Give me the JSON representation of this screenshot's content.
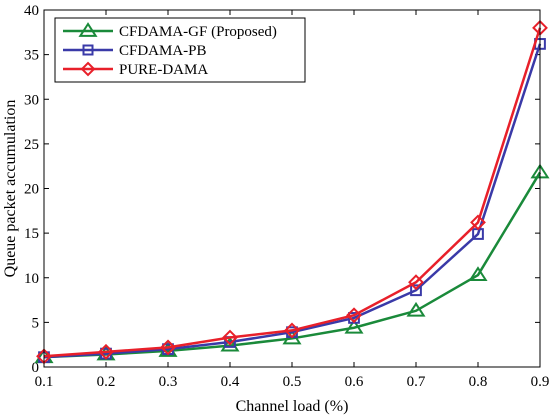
{
  "chart_data": {
    "type": "line",
    "xlabel": "Channel load (%)",
    "ylabel": "Queue packet accumulation",
    "xlim": [
      0.1,
      0.9
    ],
    "ylim": [
      0,
      40
    ],
    "x_ticks": [
      "0.1",
      "0.2",
      "0.3",
      "0.4",
      "0.5",
      "0.6",
      "0.7",
      "0.8",
      "0.9"
    ],
    "y_ticks": [
      "0",
      "5",
      "10",
      "15",
      "20",
      "25",
      "30",
      "35",
      "40"
    ],
    "grid": false,
    "legend_position": "top-left",
    "x": [
      0.1,
      0.2,
      0.3,
      0.4,
      0.5,
      0.6,
      0.7,
      0.8,
      0.9
    ],
    "series": [
      {
        "name": "CFDAMA-GF (Proposed)",
        "color": "#1a8a3a",
        "marker": "triangle",
        "values": [
          1.1,
          1.4,
          1.8,
          2.4,
          3.2,
          4.4,
          6.3,
          10.3,
          21.8
        ]
      },
      {
        "name": "CFDAMA-PB",
        "color": "#3a3aa8",
        "marker": "square",
        "values": [
          1.1,
          1.5,
          2.0,
          2.8,
          3.9,
          5.5,
          8.6,
          14.9,
          36.2
        ]
      },
      {
        "name": "PURE-DAMA",
        "color": "#e8202a",
        "marker": "diamond",
        "values": [
          1.2,
          1.7,
          2.2,
          3.3,
          4.1,
          5.8,
          9.5,
          16.2,
          38.0
        ]
      }
    ]
  }
}
